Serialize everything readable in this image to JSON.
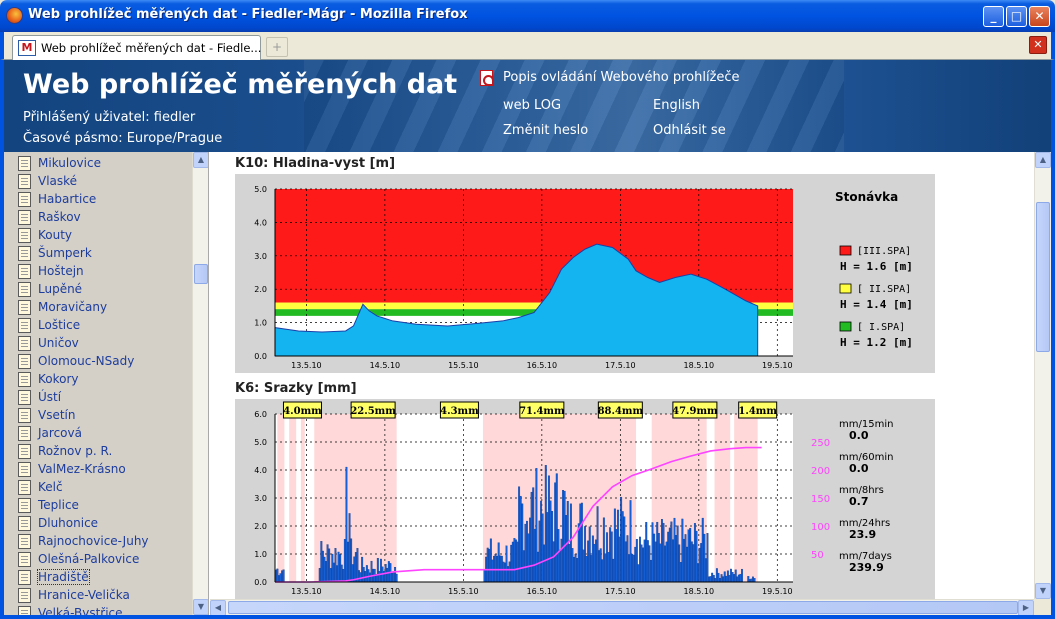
{
  "window": {
    "title": "Web prohlížeč měřených dat - Fiedler-Mágr - Mozilla Firefox",
    "tab_label": "Web prohlížeč měřených dat - Fiedle...",
    "new_tab_symbol": "+"
  },
  "header": {
    "title": "Web prohlížeč měřených dat",
    "user_line": "Přihlášený uživatel: fiedler",
    "timezone_line": "Časové pásmo: Europe/Prague",
    "links": {
      "help": "Popis ovládání Webového prohlížeče",
      "weblog": "web LOG",
      "english": "English",
      "change_password": "Změnit heslo",
      "logout": "Odhlásit se"
    }
  },
  "sidebar": {
    "items": [
      "Mikulovice",
      "Vlaské",
      "Habartice",
      "Raškov",
      "Kouty",
      "Šumperk",
      "Hoštejn",
      "Lupěné",
      "Moravičany",
      "Loštice",
      "Uničov",
      "Olomouc-NSady",
      "Kokory",
      "Ústí",
      "Vsetín",
      "Jarcová",
      "Rožnov p. R.",
      "ValMez-Krásno",
      "Kelč",
      "Teplice",
      "Dluhonice",
      "Rajnochovice-Juhy",
      "Olešná-Palkovice",
      "Hradiště",
      "Hranice-Velička",
      "Velká-Bystřice"
    ],
    "selected": "Hradiště"
  },
  "chart_data": [
    {
      "type": "area",
      "title": "K10: Hladina-vyst [m]",
      "station": "Stonávka",
      "x_labels": [
        "13.5.10",
        "14.5.10",
        "15.5.10",
        "16.5.10",
        "17.5.10",
        "18.5.10",
        "19.5.10"
      ],
      "ylim": [
        0,
        5
      ],
      "y_ticks": [
        "0.0",
        "1.0",
        "2.0",
        "3.0",
        "4.0",
        "5.0"
      ],
      "x": [
        0,
        0.3,
        0.6,
        0.9,
        1.0,
        1.12,
        1.2,
        1.3,
        1.5,
        1.8,
        2.2,
        2.6,
        2.9,
        3.1,
        3.3,
        3.5,
        3.65,
        3.8,
        3.95,
        4.1,
        4.3,
        4.5,
        4.6,
        4.75,
        4.9,
        5.1,
        5.3,
        5.5,
        5.7,
        5.85,
        6.0,
        6.15
      ],
      "values": [
        0.85,
        0.75,
        0.72,
        0.75,
        0.9,
        1.55,
        1.35,
        1.2,
        1.05,
        0.95,
        0.9,
        0.98,
        1.05,
        1.15,
        1.3,
        1.9,
        2.6,
        2.95,
        3.2,
        3.35,
        3.25,
        2.9,
        2.55,
        2.35,
        2.2,
        2.35,
        2.45,
        2.3,
        2.05,
        1.85,
        1.65,
        1.5
      ],
      "thresholds": [
        {
          "label": "[III.SPA]",
          "h_text": "H = 1.6 [m]",
          "value": 1.6,
          "color": "#ff1a1a"
        },
        {
          "label": "[ II.SPA]",
          "h_text": "H = 1.4 [m]",
          "value": 1.4,
          "color": "#ffff40"
        },
        {
          "label": "[ I.SPA]",
          "h_text": "H = 1.2 [m]",
          "value": 1.2,
          "color": "#22bb22"
        }
      ],
      "fill_color": "#14b4f0"
    },
    {
      "type": "bar",
      "title": "K6: Srazky [mm]",
      "x_labels": [
        "13.5.10",
        "14.5.10",
        "15.5.10",
        "16.5.10",
        "17.5.10",
        "18.5.10",
        "19.5.10"
      ],
      "ylim": [
        0,
        6
      ],
      "y_ticks": [
        "0.0",
        "1.0",
        "2.0",
        "3.0",
        "4.0",
        "5.0",
        "6.0"
      ],
      "right_ticks": [
        "50",
        "100",
        "150",
        "200",
        "250"
      ],
      "right_lim": [
        0,
        300
      ],
      "daily_totals": [
        "4.0mm",
        "22.5mm",
        "4.3mm",
        "71.4mm",
        "88.4mm",
        "47.9mm",
        "1.4mm"
      ],
      "summary": [
        {
          "label": "mm/15min",
          "value": "0.0"
        },
        {
          "label": "mm/60min",
          "value": "0.0"
        },
        {
          "label": "mm/8hrs",
          "value": "0.7"
        },
        {
          "label": "mm/24hrs",
          "value": "23.9"
        },
        {
          "label": "mm/7days",
          "value": "239.9"
        }
      ],
      "bar_color": "#1560d6",
      "cumulative_color": "#ff44ff",
      "cumulative_x": [
        0,
        0.45,
        0.9,
        1.0,
        1.2,
        1.5,
        1.9,
        2.4,
        2.95,
        3.05,
        3.3,
        3.55,
        3.8,
        4.05,
        4.3,
        4.55,
        4.8,
        5.05,
        5.3,
        5.55,
        5.8,
        6.0,
        6.2
      ],
      "cumulative": [
        0,
        0,
        2,
        4,
        10,
        18,
        22,
        22,
        22,
        22,
        30,
        45,
        80,
        135,
        170,
        190,
        202,
        215,
        225,
        234,
        238,
        240,
        240
      ]
    }
  ]
}
